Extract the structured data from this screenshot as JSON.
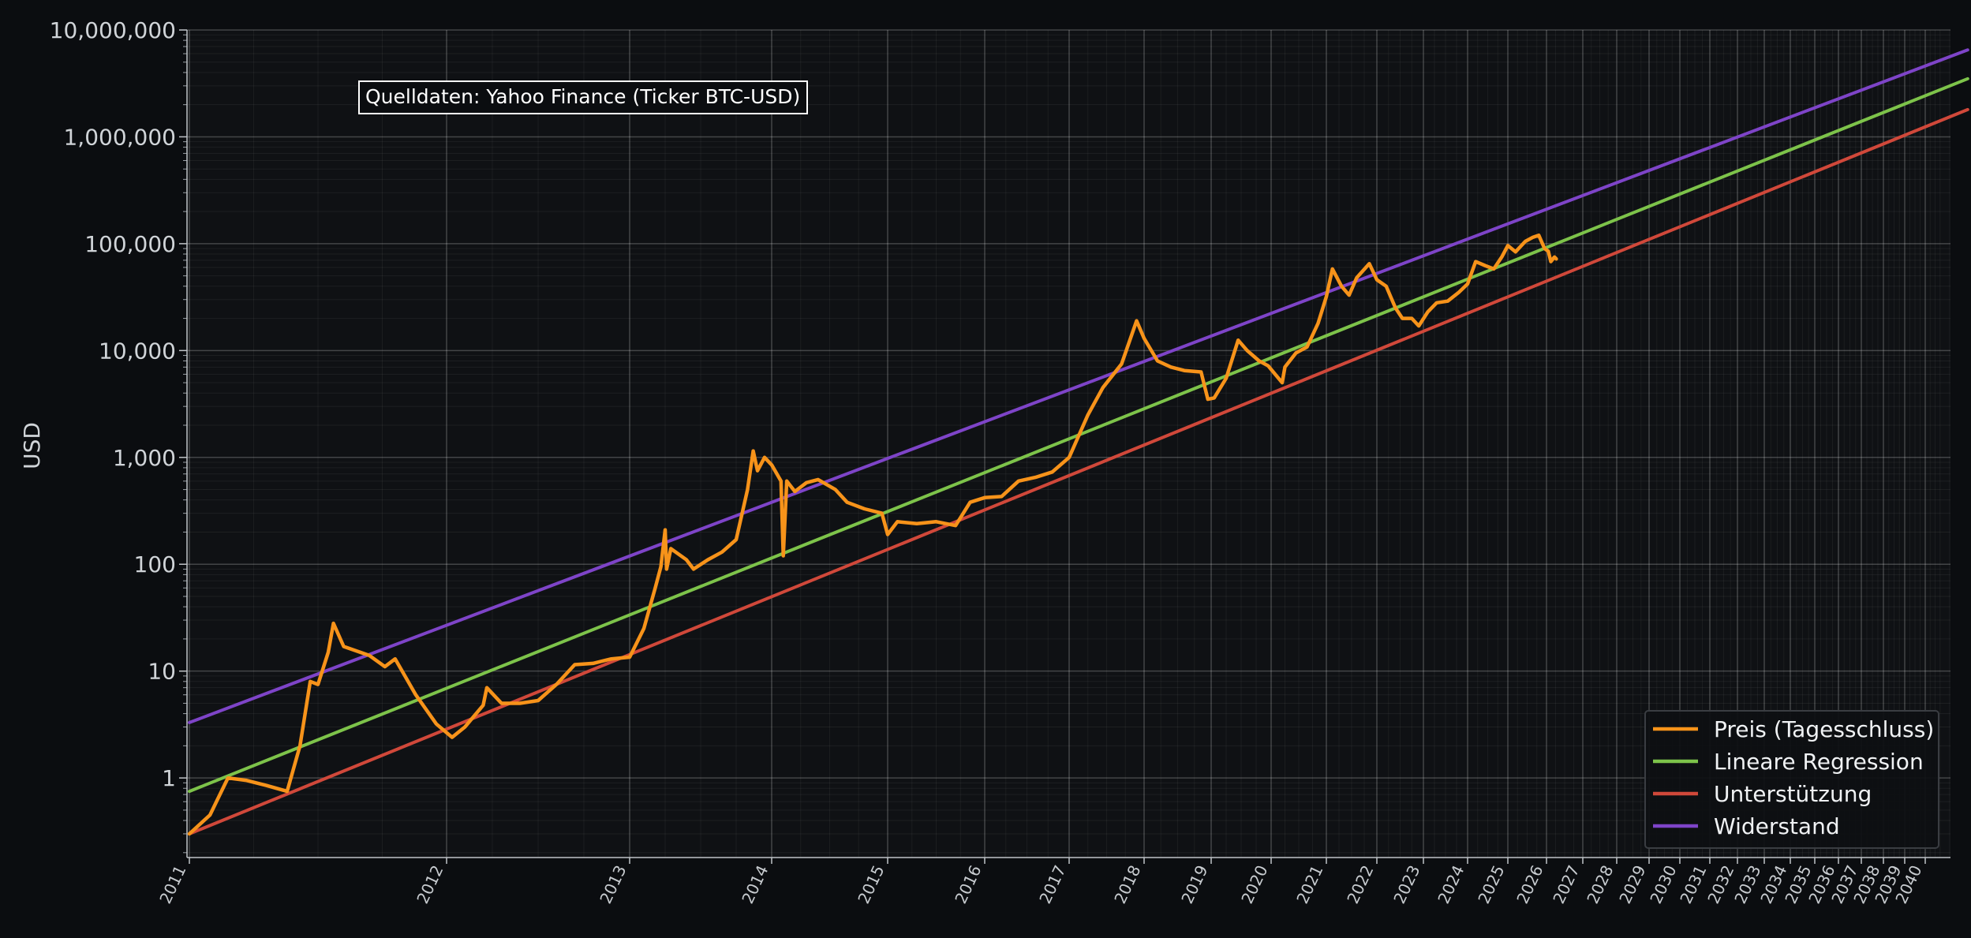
{
  "chart_data": {
    "type": "line",
    "title": "",
    "xlabel": "",
    "ylabel": "USD",
    "yscale": "log",
    "ylim": [
      0.18,
      10000000
    ],
    "xlim": [
      2011.0,
      2042.2
    ],
    "x_axis_note": "x axis is non-linear (logarithmic in time since Bitcoin genesis); tick labels are years",
    "x_ticks": [
      "2011",
      "2012",
      "2013",
      "2014",
      "2015",
      "2016",
      "2017",
      "2018",
      "2019",
      "2020",
      "2021",
      "2022",
      "2023",
      "2024",
      "2025",
      "2026",
      "2027",
      "2028",
      "2029",
      "2030",
      "2031",
      "2032",
      "2033",
      "2034",
      "2035",
      "2036",
      "2037",
      "2038",
      "2039",
      "2040"
    ],
    "y_ticks": [
      "1",
      "10",
      "100",
      "1,000",
      "10,000",
      "100,000",
      "1,000,000",
      "10,000,000"
    ],
    "y_tick_values": [
      1,
      10,
      100,
      1000,
      10000,
      100000,
      1000000,
      10000000
    ],
    "grid": true,
    "legend_position": "bottom-right",
    "annotation": "Quelldaten: Yahoo Finance (Ticker BTC-USD)",
    "series": [
      {
        "name": "Preis (Tagesschluss)",
        "color": "#f7931a",
        "points": [
          [
            2011.0,
            0.3
          ],
          [
            2011.08,
            0.45
          ],
          [
            2011.15,
            1.0
          ],
          [
            2011.22,
            0.95
          ],
          [
            2011.3,
            0.85
          ],
          [
            2011.38,
            0.75
          ],
          [
            2011.43,
            2.0
          ],
          [
            2011.47,
            8.0
          ],
          [
            2011.5,
            7.5
          ],
          [
            2011.54,
            15
          ],
          [
            2011.56,
            28
          ],
          [
            2011.6,
            17
          ],
          [
            2011.7,
            14
          ],
          [
            2011.76,
            11
          ],
          [
            2011.8,
            13
          ],
          [
            2011.88,
            6.0
          ],
          [
            2011.96,
            3.2
          ],
          [
            2012.03,
            2.4
          ],
          [
            2012.1,
            3.0
          ],
          [
            2012.2,
            4.8
          ],
          [
            2012.22,
            7.0
          ],
          [
            2012.3,
            5.0
          ],
          [
            2012.4,
            5.0
          ],
          [
            2012.5,
            5.3
          ],
          [
            2012.6,
            7.5
          ],
          [
            2012.7,
            11.5
          ],
          [
            2012.8,
            11.8
          ],
          [
            2012.9,
            13.0
          ],
          [
            2013.0,
            13.5
          ],
          [
            2013.1,
            25
          ],
          [
            2013.18,
            60
          ],
          [
            2013.22,
            95
          ],
          [
            2013.25,
            210
          ],
          [
            2013.26,
            90
          ],
          [
            2013.29,
            140
          ],
          [
            2013.4,
            110
          ],
          [
            2013.45,
            90
          ],
          [
            2013.55,
            110
          ],
          [
            2013.65,
            130
          ],
          [
            2013.75,
            170
          ],
          [
            2013.83,
            500
          ],
          [
            2013.87,
            1150
          ],
          [
            2013.9,
            750
          ],
          [
            2013.95,
            1000
          ],
          [
            2014.0,
            850
          ],
          [
            2014.08,
            600
          ],
          [
            2014.1,
            120
          ],
          [
            2014.13,
            600
          ],
          [
            2014.2,
            480
          ],
          [
            2014.3,
            580
          ],
          [
            2014.4,
            620
          ],
          [
            2014.55,
            500
          ],
          [
            2014.65,
            380
          ],
          [
            2014.8,
            330
          ],
          [
            2014.95,
            300
          ],
          [
            2015.0,
            190
          ],
          [
            2015.1,
            250
          ],
          [
            2015.3,
            240
          ],
          [
            2015.5,
            250
          ],
          [
            2015.7,
            230
          ],
          [
            2015.85,
            380
          ],
          [
            2016.0,
            420
          ],
          [
            2016.2,
            430
          ],
          [
            2016.4,
            600
          ],
          [
            2016.6,
            650
          ],
          [
            2016.8,
            730
          ],
          [
            2017.0,
            1000
          ],
          [
            2017.25,
            2500
          ],
          [
            2017.45,
            4500
          ],
          [
            2017.7,
            7500
          ],
          [
            2017.9,
            19000
          ],
          [
            2018.0,
            13000
          ],
          [
            2018.2,
            8000
          ],
          [
            2018.4,
            7000
          ],
          [
            2018.6,
            6500
          ],
          [
            2018.85,
            6300
          ],
          [
            2018.95,
            3500
          ],
          [
            2019.05,
            3600
          ],
          [
            2019.25,
            5500
          ],
          [
            2019.45,
            12500
          ],
          [
            2019.6,
            10000
          ],
          [
            2019.8,
            8000
          ],
          [
            2019.95,
            7200
          ],
          [
            2020.2,
            5000
          ],
          [
            2020.25,
            7000
          ],
          [
            2020.45,
            9500
          ],
          [
            2020.65,
            10800
          ],
          [
            2020.85,
            18000
          ],
          [
            2021.0,
            32000
          ],
          [
            2021.12,
            58000
          ],
          [
            2021.3,
            40000
          ],
          [
            2021.45,
            33000
          ],
          [
            2021.6,
            48000
          ],
          [
            2021.85,
            65000
          ],
          [
            2022.0,
            46000
          ],
          [
            2022.2,
            40000
          ],
          [
            2022.4,
            25000
          ],
          [
            2022.55,
            20000
          ],
          [
            2022.75,
            20000
          ],
          [
            2022.9,
            17000
          ],
          [
            2023.1,
            23000
          ],
          [
            2023.3,
            28000
          ],
          [
            2023.55,
            29000
          ],
          [
            2023.8,
            35000
          ],
          [
            2024.0,
            42000
          ],
          [
            2024.2,
            68000
          ],
          [
            2024.45,
            62000
          ],
          [
            2024.65,
            58000
          ],
          [
            2024.85,
            75000
          ],
          [
            2025.0,
            96000
          ],
          [
            2025.2,
            84000
          ],
          [
            2025.45,
            105000
          ],
          [
            2025.65,
            115000
          ],
          [
            2025.8,
            120000
          ],
          [
            2025.95,
            90000
          ],
          [
            2026.05,
            85000
          ],
          [
            2026.12,
            68000
          ],
          [
            2026.22,
            75000
          ],
          [
            2026.27,
            72000
          ]
        ]
      },
      {
        "name": "Lineare Regression",
        "color": "#7dc34a",
        "points": [
          [
            2011.0,
            0.75
          ],
          [
            2042.2,
            3500000
          ]
        ]
      },
      {
        "name": "Unterstützung",
        "color": "#d0483a",
        "points": [
          [
            2011.0,
            0.3
          ],
          [
            2042.2,
            1800000
          ]
        ]
      },
      {
        "name": "Widerstand",
        "color": "#7e44c8",
        "points": [
          [
            2011.0,
            3.3
          ],
          [
            2042.2,
            6500000
          ]
        ]
      }
    ]
  }
}
